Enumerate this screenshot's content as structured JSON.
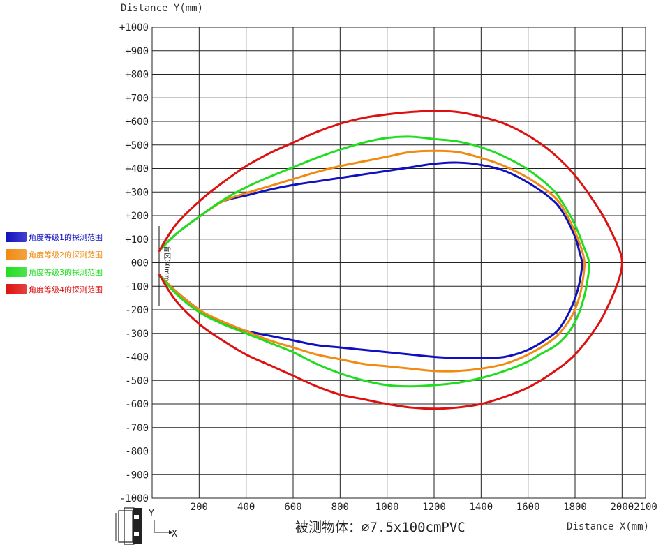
{
  "chart_data": {
    "type": "line",
    "title": "被测物体：⌀7.5x100cmPVC",
    "xlabel": "Distance X(mm)",
    "ylabel": "Distance Y(mm)",
    "xlim": [
      0,
      2100
    ],
    "ylim": [
      -1000,
      1000
    ],
    "x_ticks": [
      "200",
      "400",
      "600",
      "800",
      "1000",
      "1200",
      "1400",
      "1600",
      "1800",
      "2000",
      "2100"
    ],
    "y_ticks": [
      "+1000",
      "+900",
      "+800",
      "+700",
      "+600",
      "+500",
      "+400",
      "+300",
      "+200",
      "+100",
      "000",
      "-100",
      "-200",
      "-300",
      "-400",
      "-500",
      "-600",
      "-700",
      "-800",
      "-900",
      "-1000"
    ],
    "grid": true,
    "legend_position": "left",
    "annotation": "盲区30mm",
    "axis_icon_labels": [
      "Y",
      "X"
    ],
    "series": [
      {
        "name": "角度等级1的探测范围",
        "color": "#1010c0",
        "x": [
          30,
          100,
          200,
          300,
          400,
          500,
          600,
          700,
          800,
          900,
          1000,
          1100,
          1200,
          1300,
          1400,
          1500,
          1600,
          1700,
          1750,
          1800,
          1820,
          1830,
          1825,
          1810,
          1780,
          1740,
          1700,
          1600,
          1500,
          1400,
          1300,
          1200,
          1100,
          1000,
          900,
          800,
          700,
          600,
          500,
          400,
          300,
          200,
          100,
          30
        ],
        "y": [
          50,
          120,
          195,
          260,
          285,
          310,
          330,
          345,
          360,
          375,
          390,
          405,
          420,
          425,
          415,
          390,
          340,
          270,
          210,
          110,
          40,
          0,
          -50,
          -120,
          -200,
          -270,
          -310,
          -370,
          -400,
          -405,
          -405,
          -400,
          -390,
          -380,
          -370,
          -360,
          -350,
          -330,
          -310,
          -290,
          -260,
          -200,
          -120,
          -50
        ]
      },
      {
        "name": "角度等级2的探测范围",
        "color": "#f08a10",
        "x": [
          30,
          100,
          200,
          300,
          400,
          500,
          600,
          700,
          800,
          900,
          1000,
          1100,
          1200,
          1300,
          1400,
          1500,
          1600,
          1700,
          1750,
          1800,
          1830,
          1840,
          1835,
          1820,
          1790,
          1750,
          1700,
          1600,
          1500,
          1400,
          1300,
          1200,
          1100,
          1000,
          900,
          800,
          700,
          600,
          500,
          400,
          300,
          200,
          100,
          30
        ],
        "y": [
          50,
          120,
          195,
          260,
          295,
          325,
          355,
          385,
          410,
          430,
          450,
          470,
          475,
          470,
          445,
          410,
          360,
          290,
          230,
          130,
          50,
          0,
          -60,
          -140,
          -220,
          -280,
          -330,
          -390,
          -430,
          -450,
          -460,
          -460,
          -450,
          -440,
          -430,
          -410,
          -390,
          -360,
          -330,
          -290,
          -250,
          -200,
          -120,
          -50
        ]
      },
      {
        "name": "角度等级3的探测范围",
        "color": "#20dd20",
        "x": [
          30,
          100,
          200,
          300,
          400,
          500,
          600,
          700,
          800,
          900,
          1000,
          1100,
          1200,
          1300,
          1400,
          1500,
          1600,
          1700,
          1750,
          1800,
          1840,
          1860,
          1855,
          1840,
          1810,
          1770,
          1720,
          1650,
          1600,
          1500,
          1400,
          1300,
          1200,
          1100,
          1000,
          900,
          800,
          700,
          600,
          500,
          400,
          300,
          200,
          100,
          30
        ],
        "y": [
          50,
          120,
          195,
          265,
          320,
          365,
          405,
          445,
          480,
          510,
          530,
          535,
          525,
          515,
          490,
          450,
          395,
          315,
          250,
          160,
          60,
          0,
          -60,
          -140,
          -230,
          -300,
          -350,
          -390,
          -420,
          -460,
          -490,
          -510,
          -520,
          -525,
          -520,
          -500,
          -470,
          -430,
          -380,
          -340,
          -300,
          -260,
          -210,
          -130,
          -50
        ]
      },
      {
        "name": "角度等级4的探测范围",
        "color": "#dd1111",
        "x": [
          30,
          100,
          200,
          300,
          400,
          500,
          600,
          700,
          800,
          900,
          1000,
          1100,
          1200,
          1300,
          1400,
          1500,
          1600,
          1700,
          1800,
          1900,
          1950,
          1990,
          2000,
          1990,
          1960,
          1900,
          1800,
          1700,
          1600,
          1500,
          1400,
          1300,
          1200,
          1100,
          1000,
          900,
          800,
          700,
          600,
          500,
          400,
          300,
          200,
          100,
          30
        ],
        "y": [
          50,
          160,
          260,
          340,
          410,
          465,
          510,
          555,
          590,
          615,
          630,
          640,
          645,
          640,
          620,
          590,
          540,
          470,
          370,
          230,
          140,
          50,
          0,
          -60,
          -140,
          -260,
          -390,
          -470,
          -530,
          -570,
          -600,
          -615,
          -620,
          -615,
          -600,
          -580,
          -560,
          -525,
          -480,
          -435,
          -390,
          -330,
          -260,
          -160,
          -50
        ]
      }
    ]
  }
}
